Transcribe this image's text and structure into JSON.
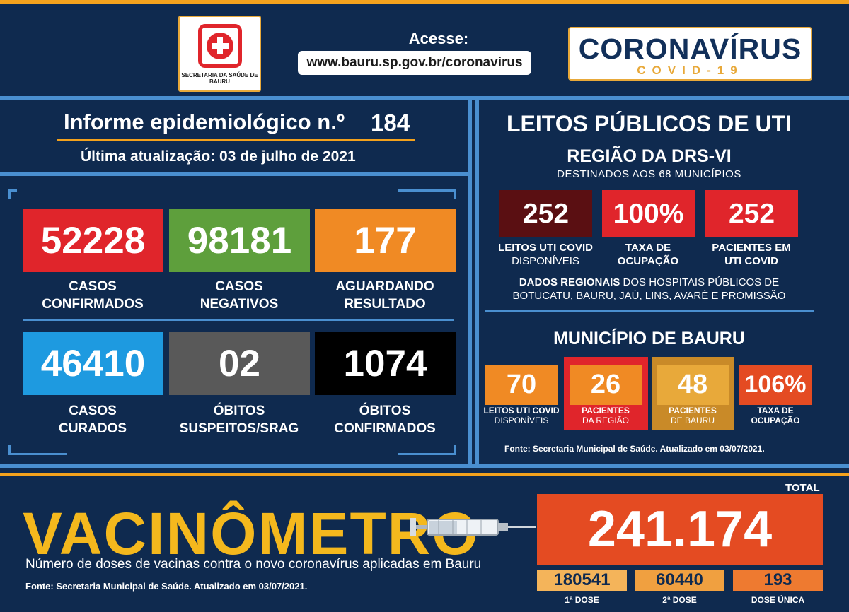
{
  "header": {
    "logo_text": "SECRETARIA DA SAÚDE DE BAURU",
    "acesse_label": "Acesse:",
    "url": "www.bauru.sp.gov.br/coronavirus",
    "brand_title": "CORONAVÍRUS",
    "brand_sub": "COVID-19"
  },
  "informe": {
    "title": "Informe epidemiológico n.º",
    "number": "184",
    "updated": "Última atualização:  03 de julho de 2021"
  },
  "stats": [
    {
      "value": "52228",
      "label1": "CASOS",
      "label2": "CONFIRMADOS",
      "color": "#e0252b"
    },
    {
      "value": "98181",
      "label1": "CASOS",
      "label2": "NEGATIVOS",
      "color": "#5e9f3c"
    },
    {
      "value": "177",
      "label1": "AGUARDANDO",
      "label2": "RESULTADO",
      "color": "#f08a24"
    },
    {
      "value": "46410",
      "label1": "CASOS",
      "label2": "CURADOS",
      "color": "#1e9ae0"
    },
    {
      "value": "02",
      "label1": "ÓBITOS",
      "label2": "SUSPEITOS/SRAG",
      "color": "#595959"
    },
    {
      "value": "1074",
      "label1": "ÓBITOS",
      "label2": "CONFIRMADOS",
      "color": "#000000"
    }
  ],
  "uti": {
    "title": "LEITOS PÚBLICOS DE UTI",
    "region": "REGIÃO DA DRS-VI",
    "destinados": "DESTINADOS AOS 68 MUNICÍPIOS",
    "boxes": [
      {
        "value": "252",
        "label1": "LEITOS UTI COVID",
        "label2": "DISPONÍVEIS",
        "color": "#5a0f12"
      },
      {
        "value": "100%",
        "label1": "TAXA DE",
        "label2": "OCUPAÇÃO",
        "color": "#e0252b"
      },
      {
        "value": "252",
        "label1": "PACIENTES EM",
        "label2": "UTI COVID",
        "color": "#e0252b"
      }
    ],
    "dados_bold": "DADOS REGIONAIS",
    "dados_rest": " DOS HOSPITAIS PÚBLICOS DE",
    "dados_line2": "BOTUCATU, BAURU, JAÚ, LINS, AVARÉ E PROMISSÃO",
    "municipio_title": "MUNICÍPIO DE BAURU",
    "municipio": [
      {
        "value": "70",
        "label1": "LEITOS UTI COVID",
        "label2": "DISPONÍVEIS",
        "color": "#f08a24"
      },
      {
        "value": "26",
        "label1": "PACIENTES",
        "label2": "DA REGIÃO",
        "color": "#f08a24"
      },
      {
        "value": "48",
        "label1": "PACIENTES",
        "label2": "DE BAURU",
        "color": "#e8a93a"
      },
      {
        "value": "106%",
        "label1": "TAXA DE",
        "label2": "OCUPAÇÃO",
        "color": "#e44b22"
      }
    ],
    "fonte": "Fonte: Secretaria Municipal de Saúde. Atualizado em 03/07/2021."
  },
  "vacinometro": {
    "title": "VACINÔMETRO",
    "subtitle": "Número de doses de vacinas contra o novo coronavírus aplicadas em Bauru",
    "fonte": "Fonte: Secretaria Municipal de Saúde. Atualizado em 03/07/2021.",
    "total_label": "TOTAL",
    "total": "241.174",
    "doses": [
      {
        "value": "180541",
        "label": "1ª DOSE",
        "color": "#f4b45a"
      },
      {
        "value": "60440",
        "label": "2ª DOSE",
        "color": "#f0a040"
      },
      {
        "value": "193",
        "label": "DOSE ÚNICA",
        "color": "#ee7a30"
      }
    ]
  }
}
